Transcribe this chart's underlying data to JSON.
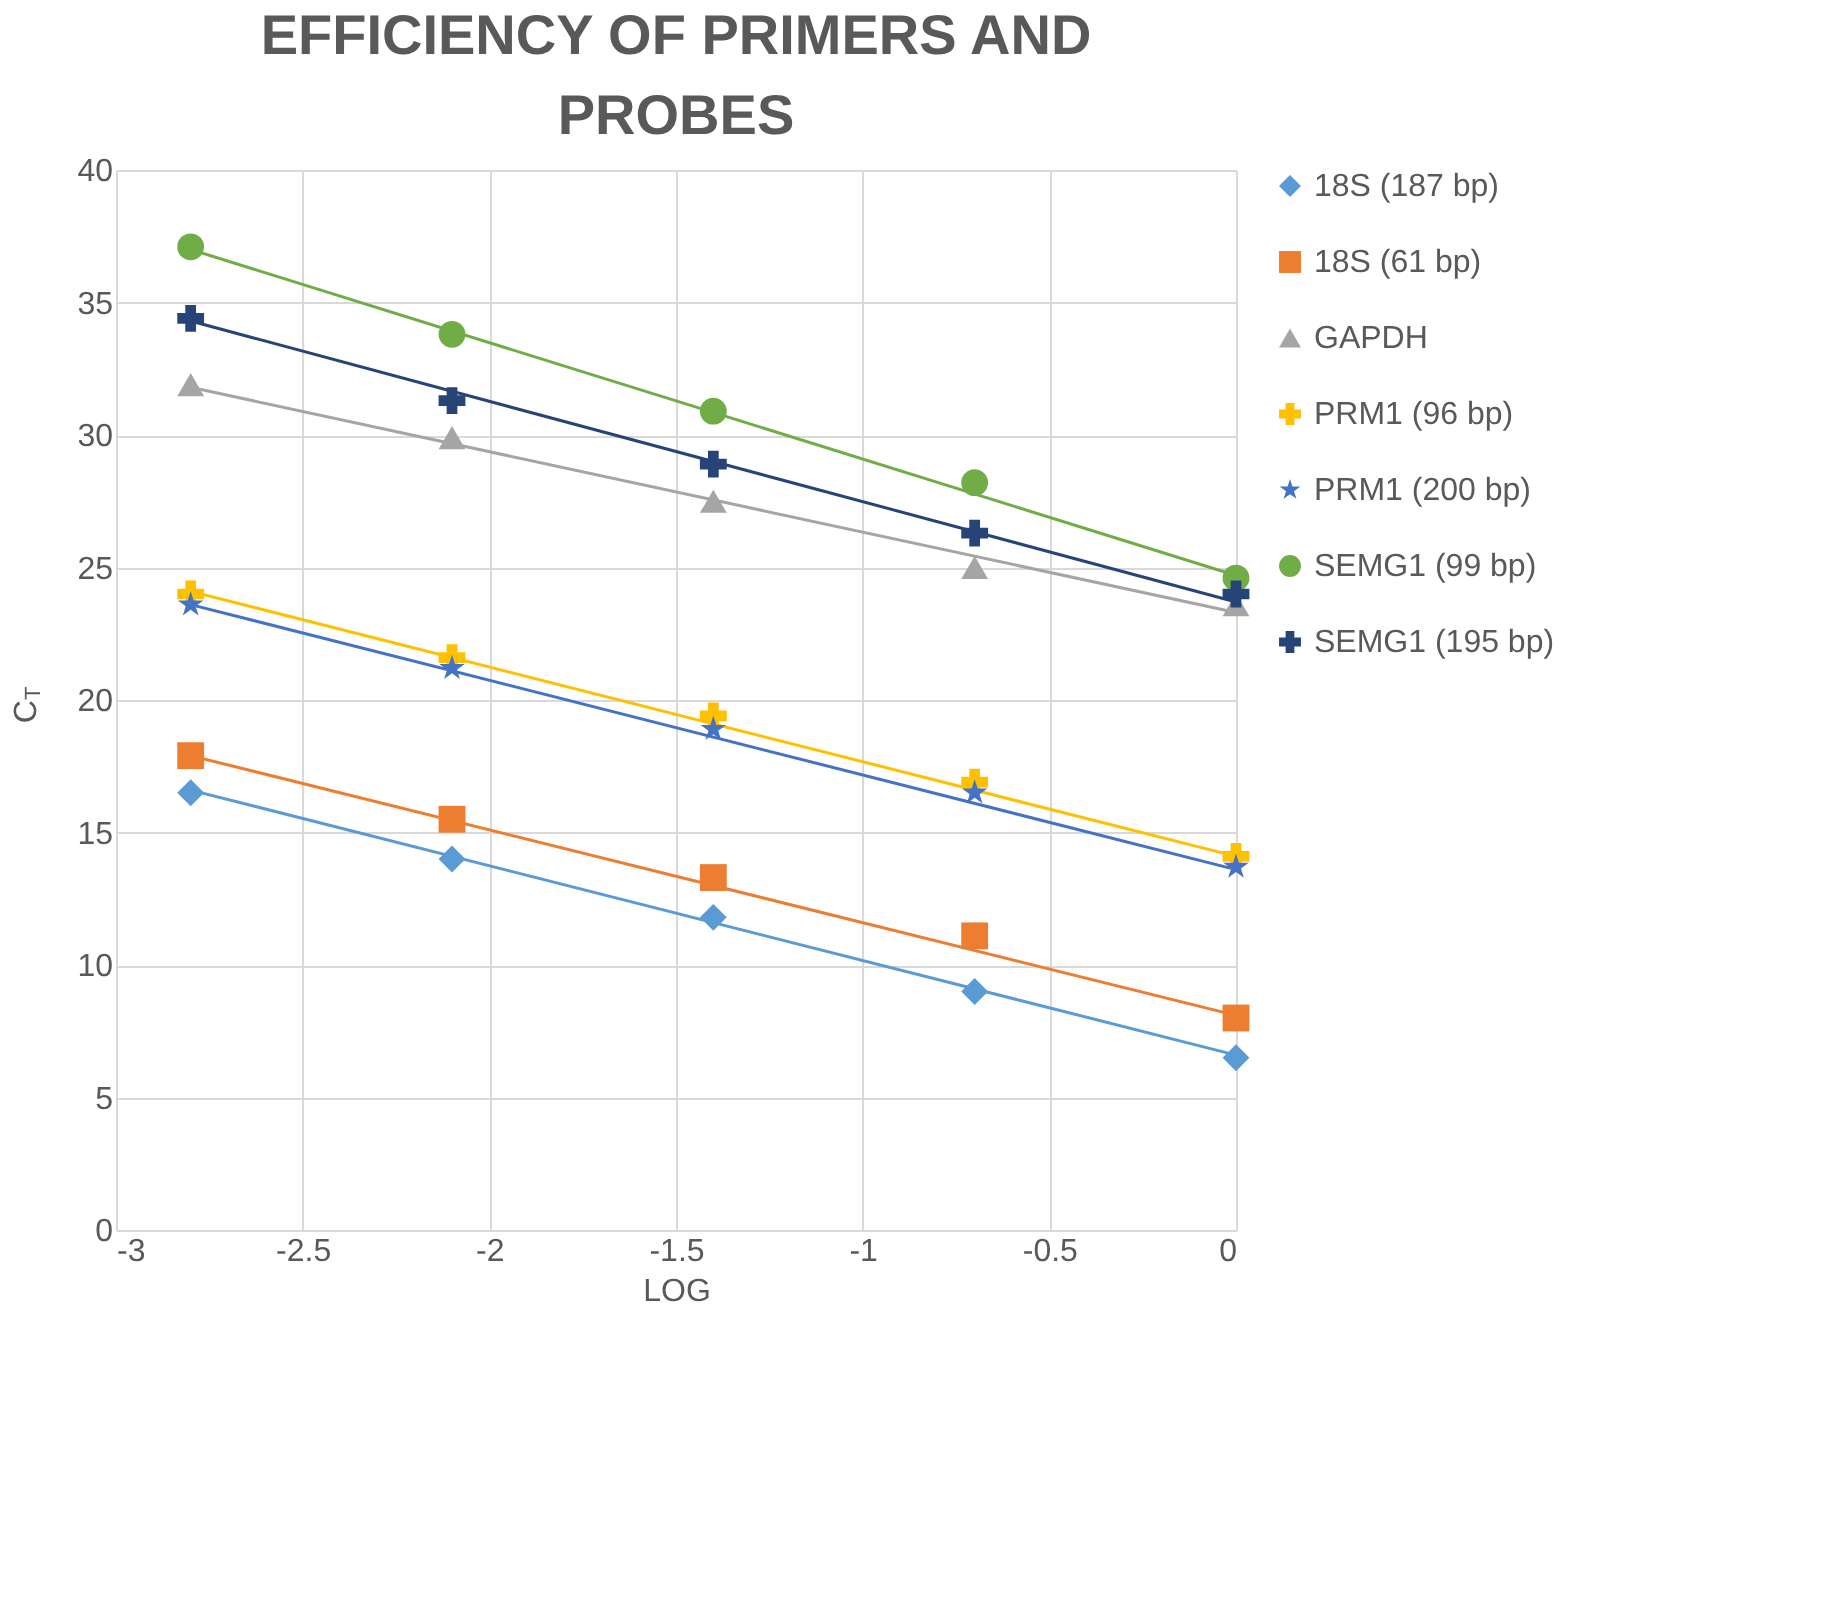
{
  "chart_data": {
    "type": "scatter",
    "title": "EFFICIENCY OF PRIMERS AND PROBES",
    "xlabel": "LOG",
    "ylabel": "C$_{T}$",
    "xlim": [
      -3,
      0
    ],
    "xticks": [
      -3,
      -2.5,
      -2,
      -1.5,
      -1,
      -0.5,
      0
    ],
    "ylim": [
      0,
      40
    ],
    "yticks": [
      0,
      5,
      10,
      15,
      20,
      25,
      30,
      35,
      40
    ],
    "grid": true,
    "legend": "right",
    "series": [
      {
        "name": "18S (187 bp)",
        "color": "#5b9bd5",
        "marker": "diamond",
        "x": [
          -2.8,
          -2.1,
          -1.4,
          -0.7,
          0
        ],
        "values": [
          16.5,
          14.0,
          11.8,
          9.0,
          6.5
        ]
      },
      {
        "name": "18S (61 bp)",
        "color": "#ed7d31",
        "marker": "square",
        "x": [
          -2.8,
          -2.1,
          -1.4,
          -0.7,
          0
        ],
        "values": [
          17.9,
          15.5,
          13.3,
          11.1,
          8.0
        ]
      },
      {
        "name": "GAPDH",
        "color": "#a5a5a5",
        "marker": "triangle",
        "x": [
          -2.8,
          -2.1,
          -1.4,
          -0.7,
          0
        ],
        "values": [
          31.9,
          29.9,
          27.5,
          25.0,
          23.6
        ]
      },
      {
        "name": "PRM1 (96 bp)",
        "color": "#ffc000",
        "marker": "cross",
        "x": [
          -2.8,
          -2.1,
          -1.4,
          -0.7,
          0
        ],
        "values": [
          24.0,
          21.6,
          19.4,
          16.9,
          14.1
        ]
      },
      {
        "name": "PRM1 (200 bp)",
        "color": "#4472c4",
        "marker": "star",
        "x": [
          -2.8,
          -2.1,
          -1.4,
          -0.7,
          0
        ],
        "values": [
          23.6,
          21.2,
          18.9,
          16.5,
          13.7
        ]
      },
      {
        "name": "SEMG1 (99 bp)",
        "color": "#70ad47",
        "marker": "circle",
        "x": [
          -2.8,
          -2.1,
          -1.4,
          -0.7,
          0
        ],
        "values": [
          37.1,
          33.8,
          30.9,
          28.2,
          24.6
        ]
      },
      {
        "name": "SEMG1 (195 bp)",
        "color": "#264478",
        "marker": "cross",
        "x": [
          -2.8,
          -2.1,
          -1.4,
          -0.7,
          0
        ],
        "values": [
          34.4,
          31.3,
          28.9,
          26.3,
          24.0
        ]
      },
      {
        "type": "line",
        "color": "#5b9bd5",
        "x": [
          -2.8,
          0
        ],
        "values": [
          16.6,
          6.6
        ]
      },
      {
        "type": "line",
        "color": "#ed7d31",
        "x": [
          -2.8,
          0
        ],
        "values": [
          17.9,
          8.1
        ]
      },
      {
        "type": "line",
        "color": "#a5a5a5",
        "x": [
          -2.8,
          0
        ],
        "values": [
          31.8,
          23.3
        ]
      },
      {
        "type": "line",
        "color": "#ffc000",
        "x": [
          -2.8,
          0
        ],
        "values": [
          24.1,
          14.1
        ]
      },
      {
        "type": "line",
        "color": "#4472c4",
        "x": [
          -2.8,
          0
        ],
        "values": [
          23.6,
          13.6
        ]
      },
      {
        "type": "line",
        "color": "#70ad47",
        "x": [
          -2.8,
          0
        ],
        "values": [
          37.0,
          24.7
        ]
      },
      {
        "type": "line",
        "color": "#264478",
        "x": [
          -2.8,
          0
        ],
        "values": [
          34.3,
          23.7
        ]
      }
    ]
  }
}
